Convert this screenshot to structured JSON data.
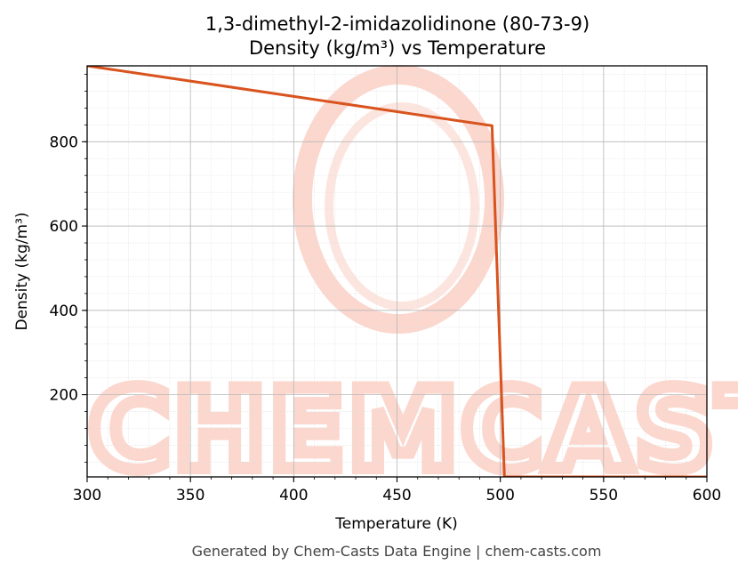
{
  "chart_data": {
    "type": "line",
    "title": "1,3-dimethyl-2-imidazolidinone (80-73-9)",
    "subtitle": "Density (kg/m³) vs Temperature",
    "xlabel": "Temperature (K)",
    "ylabel": "Density (kg/m³)",
    "xlim": [
      300,
      600
    ],
    "ylim": [
      5,
      980
    ],
    "x_ticks": [
      300,
      350,
      400,
      450,
      500,
      550,
      600
    ],
    "y_ticks": [
      200,
      400,
      600,
      800
    ],
    "grid": true,
    "series": [
      {
        "color": "#d9531e",
        "x": [
          300,
          496,
          502,
          600
        ],
        "y": [
          980,
          838,
          5,
          5
        ]
      }
    ]
  },
  "watermark": {
    "text": "CHEMCASTS",
    "color": "#fbd3c9"
  },
  "footer": "Generated by Chem-Casts Data Engine | chem-casts.com"
}
